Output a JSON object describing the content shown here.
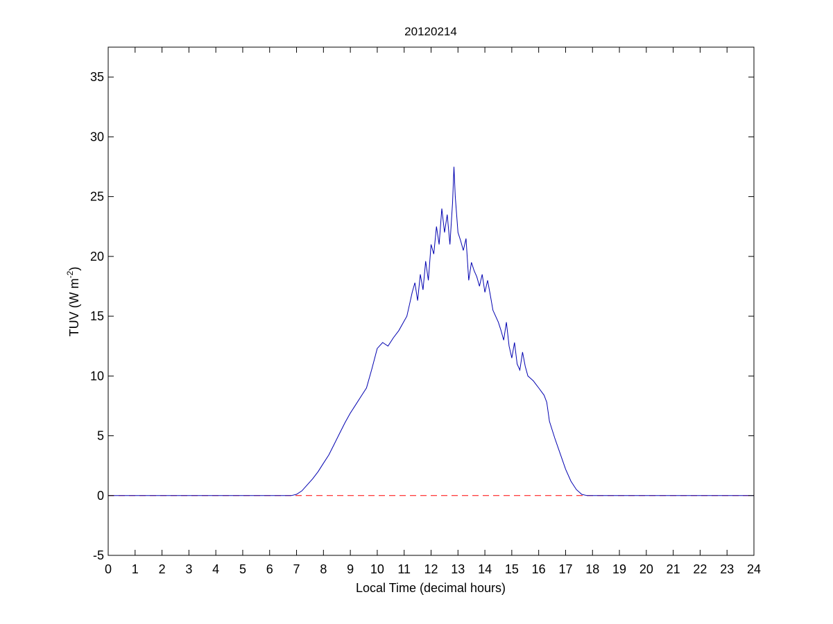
{
  "chart_data": {
    "type": "line",
    "title": "20120214",
    "xlabel": "Local Time (decimal hours)",
    "ylabel": "TUV (W m",
    "ylabel_superscript": "-2",
    "ylabel_close": ")",
    "xlim": [
      0,
      24
    ],
    "ylim": [
      -5,
      37.5
    ],
    "xticks": [
      "0",
      "1",
      "2",
      "3",
      "4",
      "5",
      "6",
      "7",
      "8",
      "9",
      "10",
      "11",
      "12",
      "13",
      "14",
      "15",
      "16",
      "17",
      "18",
      "19",
      "20",
      "21",
      "22",
      "23",
      "24"
    ],
    "yticks": [
      "-5",
      "0",
      "5",
      "10",
      "15",
      "20",
      "25",
      "30",
      "35"
    ],
    "grid": false,
    "colors": {
      "series": "#0000b0",
      "reference": "#ff0000"
    },
    "series": [
      {
        "x": [
          0,
          6.8,
          7.0,
          7.2,
          7.4,
          7.6,
          7.8,
          8.0,
          8.2,
          8.4,
          8.6,
          8.8,
          9.0,
          9.2,
          9.4,
          9.6,
          9.8,
          10.0,
          10.2,
          10.4,
          10.6,
          10.8,
          11.0,
          11.1,
          11.2,
          11.3,
          11.4,
          11.5,
          11.6,
          11.7,
          11.8,
          11.9,
          12.0,
          12.1,
          12.2,
          12.3,
          12.4,
          12.5,
          12.6,
          12.7,
          12.8,
          12.85,
          12.9,
          13.0,
          13.1,
          13.2,
          13.3,
          13.4,
          13.5,
          13.6,
          13.7,
          13.8,
          13.9,
          14.0,
          14.1,
          14.2,
          14.3,
          14.4,
          14.5,
          14.6,
          14.7,
          14.8,
          14.9,
          15.0,
          15.1,
          15.2,
          15.3,
          15.4,
          15.5,
          15.6,
          15.7,
          15.8,
          15.9,
          16.0,
          16.1,
          16.2,
          16.3,
          16.4,
          16.6,
          16.8,
          17.0,
          17.2,
          17.4,
          17.6,
          17.8,
          18.0,
          24
        ],
        "y": [
          0,
          0,
          0.1,
          0.4,
          0.9,
          1.4,
          2.0,
          2.7,
          3.4,
          4.3,
          5.2,
          6.1,
          6.9,
          7.6,
          8.3,
          9.0,
          10.6,
          12.3,
          12.8,
          12.5,
          13.2,
          13.8,
          14.6,
          15.0,
          16.0,
          17.0,
          17.8,
          16.3,
          18.5,
          17.2,
          19.6,
          18.0,
          21.0,
          20.2,
          22.5,
          21.0,
          24.0,
          22.0,
          23.5,
          21.0,
          24.5,
          27.5,
          25.0,
          22.0,
          21.3,
          20.5,
          21.5,
          18.0,
          19.5,
          18.8,
          18.3,
          17.5,
          18.5,
          17.0,
          18.0,
          16.8,
          15.5,
          15.0,
          14.5,
          13.8,
          13.0,
          14.5,
          12.5,
          11.5,
          12.8,
          11.0,
          10.5,
          12.0,
          10.8,
          10.0,
          9.8,
          9.6,
          9.3,
          9.0,
          8.7,
          8.4,
          7.8,
          6.2,
          4.8,
          3.5,
          2.2,
          1.2,
          0.5,
          0.1,
          0,
          0,
          0
        ]
      }
    ],
    "reference_line": {
      "y": 0,
      "style": "dashed"
    }
  }
}
